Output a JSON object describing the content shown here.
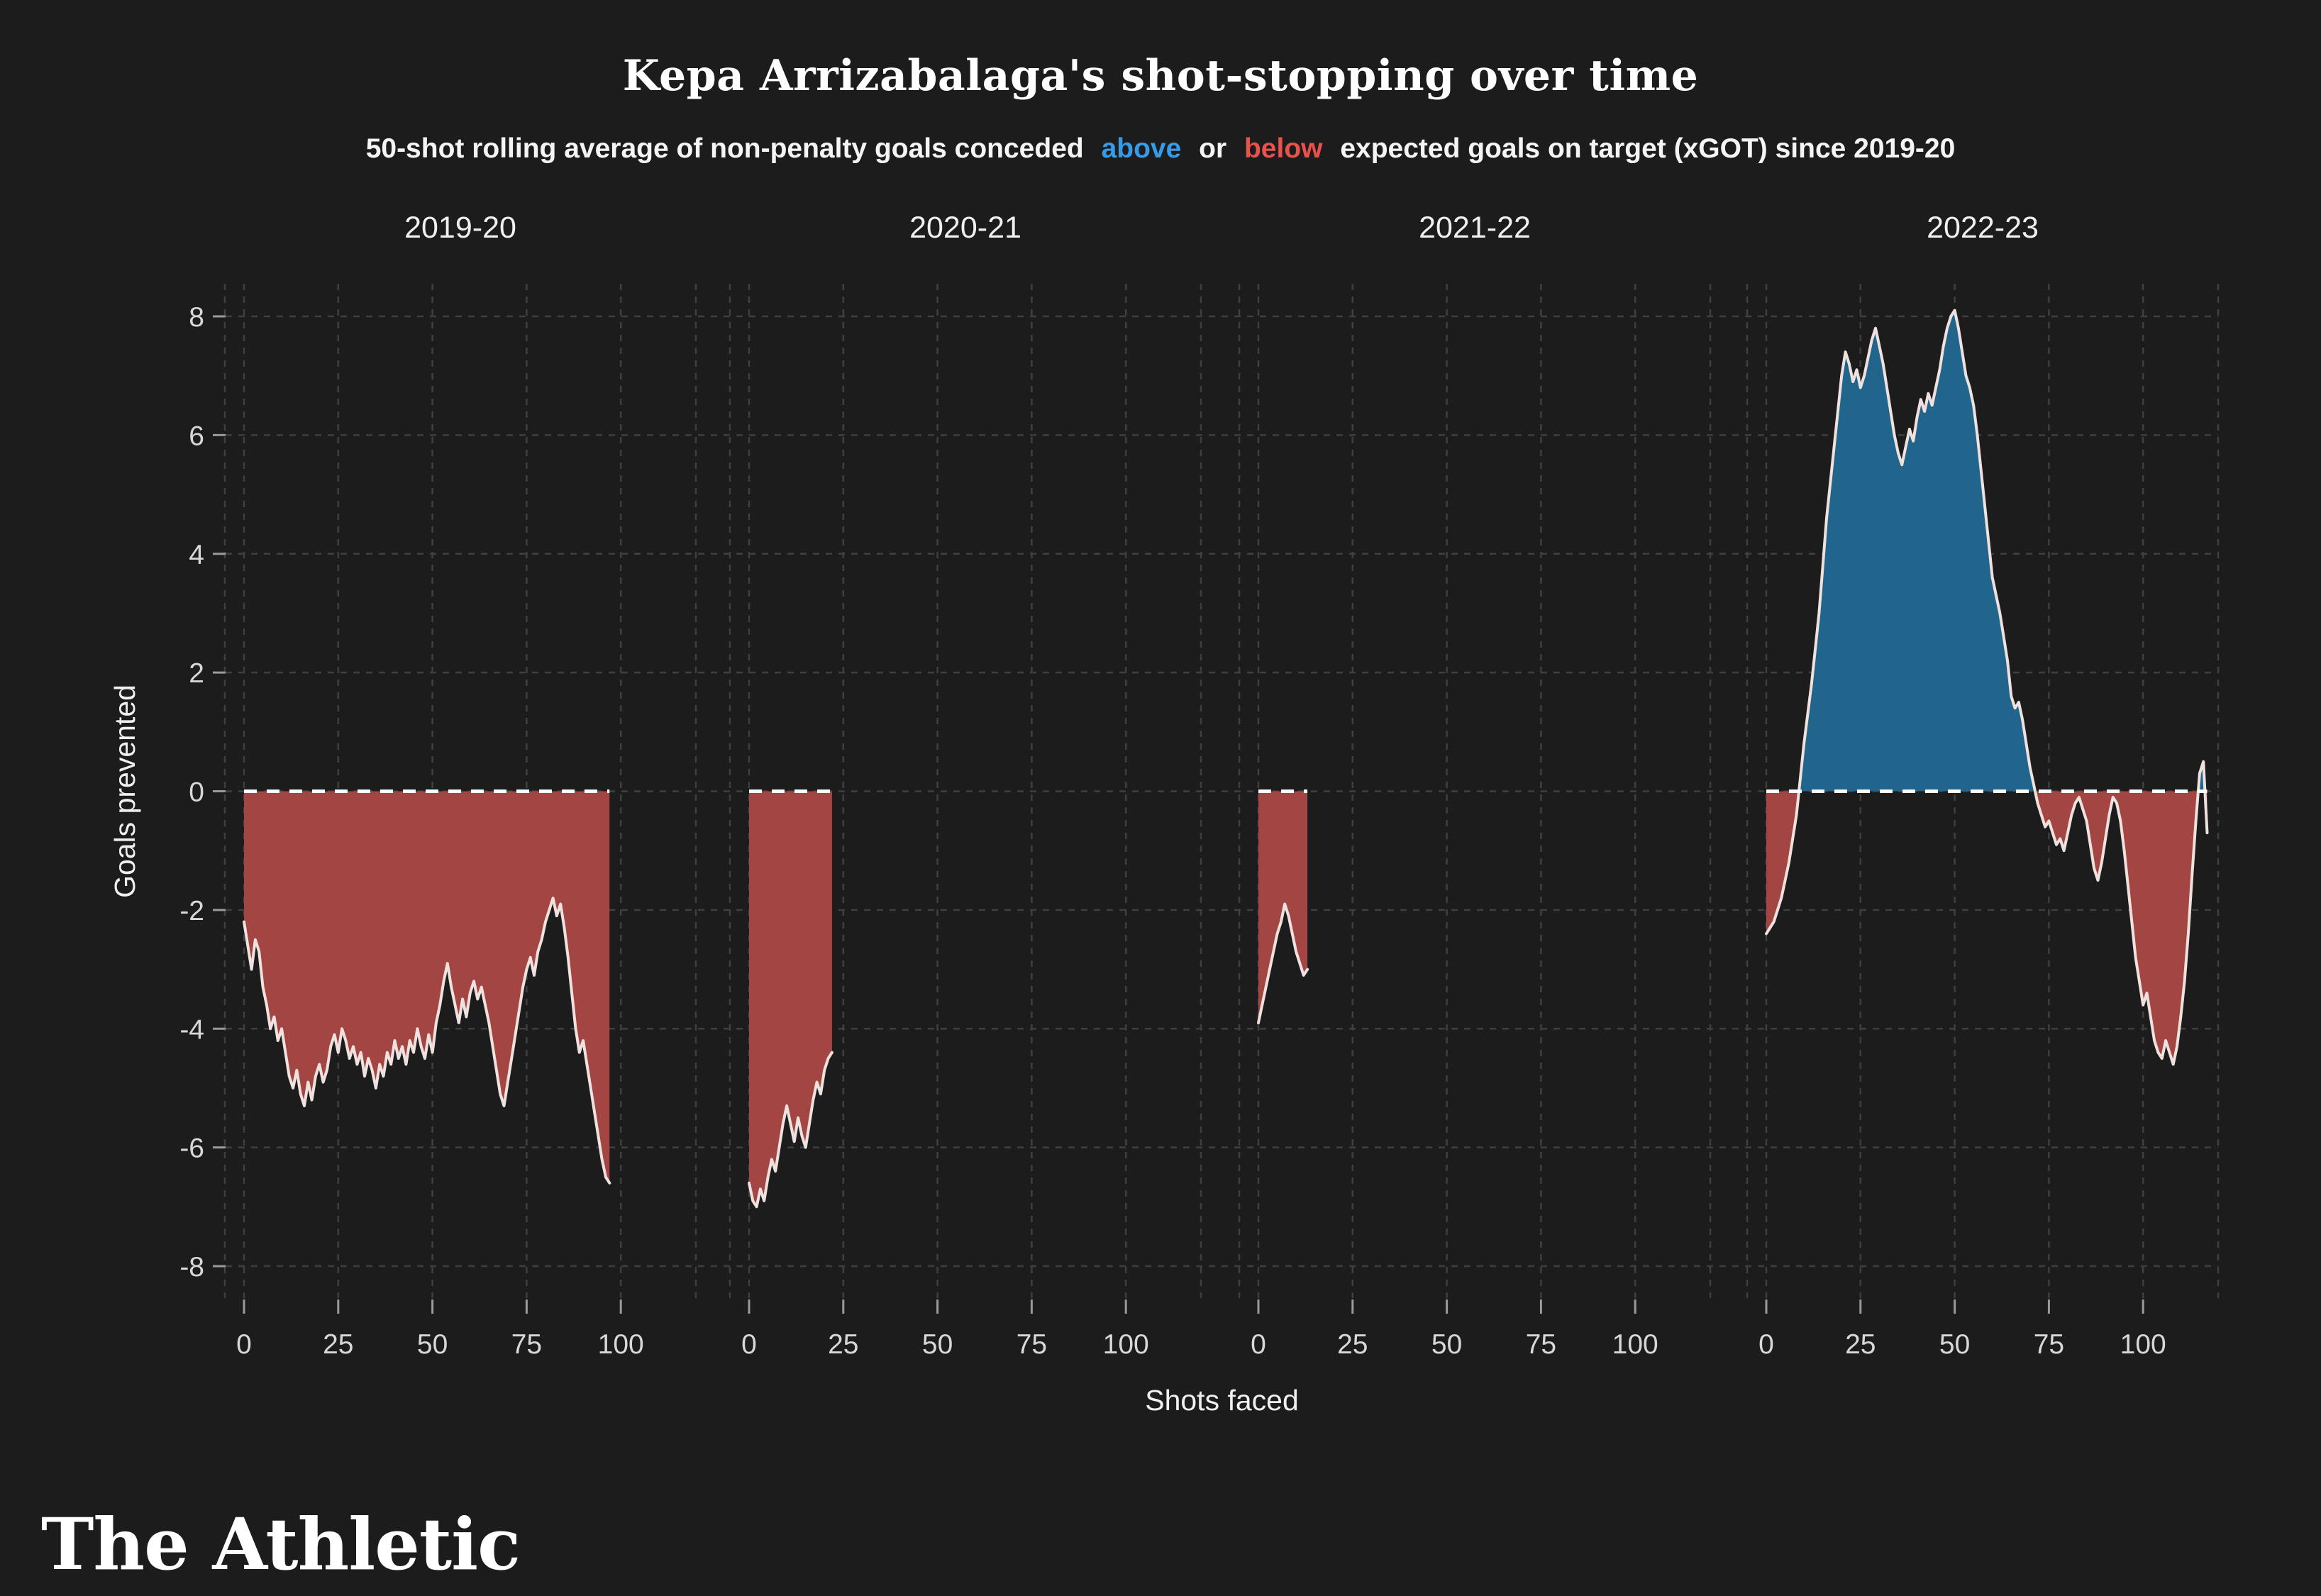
{
  "title": "Kepa Arrizabalaga's shot-stopping over time",
  "subtitle": {
    "pre": "50-shot rolling average of non-penalty goals conceded",
    "above_word": "above",
    "or_word": "or",
    "below_word": "below",
    "post": "expected goals on target (xGOT) since 2019-20"
  },
  "branding": "The Athletic",
  "chart_data": {
    "type": "area",
    "title": "Kepa Arrizabalaga's shot-stopping over time",
    "subtitle": "50-shot rolling average of non-penalty goals conceded above or below expected goals on target (xGOT) since 2019-20",
    "xlabel": "Shots faced",
    "ylabel": "Goals prevented",
    "ylim": [
      -8,
      8
    ],
    "yticks": [
      8,
      6,
      4,
      2,
      0,
      -2,
      -4,
      -6,
      -8
    ],
    "xticks": [
      0,
      25,
      50,
      75,
      100
    ],
    "grid": "on",
    "colors": {
      "above": "#21658d",
      "below": "#a34543",
      "line": "#efe1dd",
      "zero": "#ffffff",
      "grid": "#3f3f41",
      "bg": "#1c1c1d",
      "text": "#f0f0f0",
      "tick_text": "#d8d8d8",
      "accent_above": "#369ce8",
      "accent_below": "#e8524b"
    },
    "facets": [
      {
        "label": "2019-20",
        "points": [
          [
            0,
            -2.2
          ],
          [
            1,
            -2.6
          ],
          [
            2,
            -3.0
          ],
          [
            3,
            -2.5
          ],
          [
            4,
            -2.7
          ],
          [
            5,
            -3.3
          ],
          [
            6,
            -3.6
          ],
          [
            7,
            -4.0
          ],
          [
            8,
            -3.8
          ],
          [
            9,
            -4.2
          ],
          [
            10,
            -4.0
          ],
          [
            11,
            -4.4
          ],
          [
            12,
            -4.8
          ],
          [
            13,
            -5.0
          ],
          [
            14,
            -4.7
          ],
          [
            15,
            -5.1
          ],
          [
            16,
            -5.3
          ],
          [
            17,
            -4.9
          ],
          [
            18,
            -5.2
          ],
          [
            19,
            -4.8
          ],
          [
            20,
            -4.6
          ],
          [
            21,
            -4.9
          ],
          [
            22,
            -4.7
          ],
          [
            23,
            -4.3
          ],
          [
            24,
            -4.1
          ],
          [
            25,
            -4.4
          ],
          [
            26,
            -4.0
          ],
          [
            27,
            -4.2
          ],
          [
            28,
            -4.5
          ],
          [
            29,
            -4.3
          ],
          [
            30,
            -4.6
          ],
          [
            31,
            -4.4
          ],
          [
            32,
            -4.8
          ],
          [
            33,
            -4.5
          ],
          [
            34,
            -4.7
          ],
          [
            35,
            -5.0
          ],
          [
            36,
            -4.6
          ],
          [
            37,
            -4.8
          ],
          [
            38,
            -4.4
          ],
          [
            39,
            -4.6
          ],
          [
            40,
            -4.2
          ],
          [
            41,
            -4.5
          ],
          [
            42,
            -4.3
          ],
          [
            43,
            -4.6
          ],
          [
            44,
            -4.2
          ],
          [
            45,
            -4.4
          ],
          [
            46,
            -4.0
          ],
          [
            47,
            -4.3
          ],
          [
            48,
            -4.5
          ],
          [
            49,
            -4.1
          ],
          [
            50,
            -4.4
          ],
          [
            51,
            -3.9
          ],
          [
            52,
            -3.6
          ],
          [
            53,
            -3.2
          ],
          [
            54,
            -2.9
          ],
          [
            55,
            -3.3
          ],
          [
            56,
            -3.6
          ],
          [
            57,
            -3.9
          ],
          [
            58,
            -3.5
          ],
          [
            59,
            -3.8
          ],
          [
            60,
            -3.4
          ],
          [
            61,
            -3.2
          ],
          [
            62,
            -3.5
          ],
          [
            63,
            -3.3
          ],
          [
            64,
            -3.6
          ],
          [
            65,
            -3.9
          ],
          [
            66,
            -4.3
          ],
          [
            67,
            -4.7
          ],
          [
            68,
            -5.1
          ],
          [
            69,
            -5.3
          ],
          [
            70,
            -4.9
          ],
          [
            71,
            -4.5
          ],
          [
            72,
            -4.1
          ],
          [
            73,
            -3.7
          ],
          [
            74,
            -3.3
          ],
          [
            75,
            -3.0
          ],
          [
            76,
            -2.8
          ],
          [
            77,
            -3.1
          ],
          [
            78,
            -2.7
          ],
          [
            79,
            -2.5
          ],
          [
            80,
            -2.2
          ],
          [
            81,
            -2.0
          ],
          [
            82,
            -1.8
          ],
          [
            83,
            -2.1
          ],
          [
            84,
            -1.9
          ],
          [
            85,
            -2.3
          ],
          [
            86,
            -2.8
          ],
          [
            87,
            -3.4
          ],
          [
            88,
            -4.0
          ],
          [
            89,
            -4.4
          ],
          [
            90,
            -4.2
          ],
          [
            91,
            -4.6
          ],
          [
            92,
            -5.0
          ],
          [
            93,
            -5.4
          ],
          [
            94,
            -5.8
          ],
          [
            95,
            -6.2
          ],
          [
            96,
            -6.5
          ],
          [
            97,
            -6.6
          ]
        ]
      },
      {
        "label": "2020-21",
        "points": [
          [
            0,
            -6.6
          ],
          [
            1,
            -6.9
          ],
          [
            2,
            -7.0
          ],
          [
            3,
            -6.7
          ],
          [
            4,
            -6.9
          ],
          [
            5,
            -6.5
          ],
          [
            6,
            -6.2
          ],
          [
            7,
            -6.4
          ],
          [
            8,
            -6.0
          ],
          [
            9,
            -5.6
          ],
          [
            10,
            -5.3
          ],
          [
            11,
            -5.6
          ],
          [
            12,
            -5.9
          ],
          [
            13,
            -5.5
          ],
          [
            14,
            -5.8
          ],
          [
            15,
            -6.0
          ],
          [
            16,
            -5.6
          ],
          [
            17,
            -5.2
          ],
          [
            18,
            -4.9
          ],
          [
            19,
            -5.1
          ],
          [
            20,
            -4.7
          ],
          [
            21,
            -4.5
          ],
          [
            22,
            -4.4
          ]
        ]
      },
      {
        "label": "2021-22",
        "points": [
          [
            0,
            -3.9
          ],
          [
            1,
            -3.6
          ],
          [
            2,
            -3.3
          ],
          [
            3,
            -3.0
          ],
          [
            4,
            -2.7
          ],
          [
            5,
            -2.4
          ],
          [
            6,
            -2.2
          ],
          [
            7,
            -1.9
          ],
          [
            8,
            -2.1
          ],
          [
            9,
            -2.4
          ],
          [
            10,
            -2.7
          ],
          [
            11,
            -2.9
          ],
          [
            12,
            -3.1
          ],
          [
            13,
            -3.0
          ]
        ]
      },
      {
        "label": "2022-23",
        "points": [
          [
            0,
            -2.4
          ],
          [
            1,
            -2.3
          ],
          [
            2,
            -2.2
          ],
          [
            3,
            -2.0
          ],
          [
            4,
            -1.8
          ],
          [
            5,
            -1.5
          ],
          [
            6,
            -1.2
          ],
          [
            7,
            -0.8
          ],
          [
            8,
            -0.4
          ],
          [
            9,
            0.2
          ],
          [
            10,
            0.8
          ],
          [
            11,
            1.3
          ],
          [
            12,
            1.8
          ],
          [
            13,
            2.4
          ],
          [
            14,
            3.0
          ],
          [
            15,
            3.8
          ],
          [
            16,
            4.6
          ],
          [
            17,
            5.2
          ],
          [
            18,
            5.8
          ],
          [
            19,
            6.4
          ],
          [
            20,
            7.0
          ],
          [
            21,
            7.4
          ],
          [
            22,
            7.2
          ],
          [
            23,
            6.9
          ],
          [
            24,
            7.1
          ],
          [
            25,
            6.8
          ],
          [
            26,
            7.0
          ],
          [
            27,
            7.3
          ],
          [
            28,
            7.6
          ],
          [
            29,
            7.8
          ],
          [
            30,
            7.5
          ],
          [
            31,
            7.2
          ],
          [
            32,
            6.8
          ],
          [
            33,
            6.4
          ],
          [
            34,
            6.0
          ],
          [
            35,
            5.7
          ],
          [
            36,
            5.5
          ],
          [
            37,
            5.8
          ],
          [
            38,
            6.1
          ],
          [
            39,
            5.9
          ],
          [
            40,
            6.3
          ],
          [
            41,
            6.6
          ],
          [
            42,
            6.4
          ],
          [
            43,
            6.7
          ],
          [
            44,
            6.5
          ],
          [
            45,
            6.8
          ],
          [
            46,
            7.1
          ],
          [
            47,
            7.5
          ],
          [
            48,
            7.8
          ],
          [
            49,
            8.0
          ],
          [
            50,
            8.1
          ],
          [
            51,
            7.8
          ],
          [
            52,
            7.4
          ],
          [
            53,
            7.0
          ],
          [
            54,
            6.8
          ],
          [
            55,
            6.5
          ],
          [
            56,
            6.0
          ],
          [
            57,
            5.4
          ],
          [
            58,
            4.8
          ],
          [
            59,
            4.2
          ],
          [
            60,
            3.6
          ],
          [
            61,
            3.3
          ],
          [
            62,
            3.0
          ],
          [
            63,
            2.6
          ],
          [
            64,
            2.2
          ],
          [
            65,
            1.6
          ],
          [
            66,
            1.4
          ],
          [
            67,
            1.5
          ],
          [
            68,
            1.2
          ],
          [
            69,
            0.8
          ],
          [
            70,
            0.4
          ],
          [
            71,
            0.1
          ],
          [
            72,
            -0.2
          ],
          [
            73,
            -0.4
          ],
          [
            74,
            -0.6
          ],
          [
            75,
            -0.5
          ],
          [
            76,
            -0.7
          ],
          [
            77,
            -0.9
          ],
          [
            78,
            -0.8
          ],
          [
            79,
            -1.0
          ],
          [
            80,
            -0.7
          ],
          [
            81,
            -0.4
          ],
          [
            82,
            -0.2
          ],
          [
            83,
            -0.1
          ],
          [
            84,
            -0.3
          ],
          [
            85,
            -0.5
          ],
          [
            86,
            -0.9
          ],
          [
            87,
            -1.3
          ],
          [
            88,
            -1.5
          ],
          [
            89,
            -1.2
          ],
          [
            90,
            -0.8
          ],
          [
            91,
            -0.4
          ],
          [
            92,
            -0.1
          ],
          [
            93,
            -0.2
          ],
          [
            94,
            -0.5
          ],
          [
            95,
            -1.0
          ],
          [
            96,
            -1.6
          ],
          [
            97,
            -2.2
          ],
          [
            98,
            -2.8
          ],
          [
            99,
            -3.2
          ],
          [
            100,
            -3.6
          ],
          [
            101,
            -3.4
          ],
          [
            102,
            -3.8
          ],
          [
            103,
            -4.2
          ],
          [
            104,
            -4.4
          ],
          [
            105,
            -4.5
          ],
          [
            106,
            -4.2
          ],
          [
            107,
            -4.4
          ],
          [
            108,
            -4.6
          ],
          [
            109,
            -4.3
          ],
          [
            110,
            -3.8
          ],
          [
            111,
            -3.2
          ],
          [
            112,
            -2.4
          ],
          [
            113,
            -1.4
          ],
          [
            114,
            -0.5
          ],
          [
            115,
            0.3
          ],
          [
            116,
            0.5
          ],
          [
            117,
            -0.7
          ]
        ]
      }
    ]
  }
}
